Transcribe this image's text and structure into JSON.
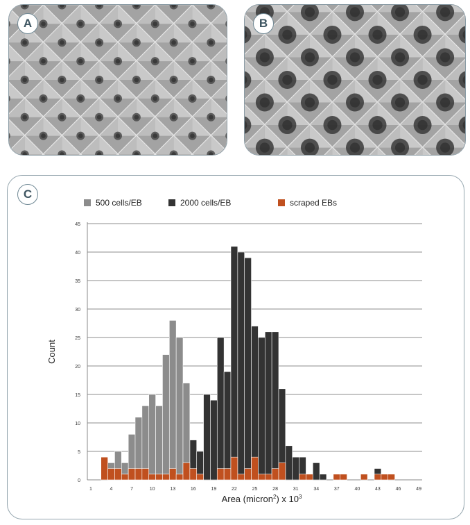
{
  "panels": {
    "a": {
      "label": "A"
    },
    "b": {
      "label": "B"
    },
    "c": {
      "label": "C"
    }
  },
  "colors": {
    "series_500": "#8c8c8c",
    "series_2000": "#333333",
    "series_scraped": "#c0501f",
    "grid": "#b3b3b3",
    "panel_border": "#8a9ba4"
  },
  "chart_data": {
    "type": "bar",
    "xlabel_main": "Area (micron",
    "xlabel_sup1": "2",
    "xlabel_mid": ") x 10",
    "xlabel_sup2": "3",
    "ylabel": "Count",
    "ylim": [
      0,
      45
    ],
    "y_ticks": [
      "0",
      "5",
      "10",
      "15",
      "20",
      "25",
      "30",
      "35",
      "40",
      "45"
    ],
    "x_ticks": [
      "1",
      "4",
      "7",
      "10",
      "13",
      "16",
      "19",
      "22",
      "25",
      "28",
      "31",
      "34",
      "37",
      "40",
      "43",
      "46",
      "49"
    ],
    "grid": true,
    "legend_position": "top",
    "bins": [
      1,
      2,
      3,
      4,
      5,
      6,
      7,
      8,
      9,
      10,
      11,
      12,
      13,
      14,
      15,
      16,
      17,
      18,
      19,
      20,
      21,
      22,
      23,
      24,
      25,
      26,
      27,
      28,
      29,
      30,
      31,
      32,
      33,
      34,
      35,
      36,
      37,
      38,
      39,
      40,
      41,
      42,
      43,
      44,
      45,
      46,
      47,
      48,
      49
    ],
    "series": [
      {
        "name": "500 cells/EB",
        "values": [
          0,
          0,
          0,
          3,
          5,
          3,
          8,
          11,
          13,
          15,
          13,
          22,
          28,
          25,
          17,
          0,
          0,
          0,
          0,
          0,
          0,
          0,
          0,
          0,
          0,
          0,
          0,
          0,
          0,
          0,
          0,
          0,
          0,
          0,
          0,
          0,
          0,
          0,
          0,
          0,
          0,
          0,
          0,
          0,
          0,
          0,
          0,
          0,
          0
        ]
      },
      {
        "name": "2000 cells/EB",
        "values": [
          0,
          0,
          0,
          0,
          0,
          1,
          2,
          3,
          1,
          1,
          2,
          3,
          2,
          3,
          3,
          7,
          5,
          15,
          14,
          25,
          19,
          41,
          40,
          39,
          27,
          25,
          26,
          26,
          16,
          6,
          4,
          4,
          1,
          3,
          1,
          0,
          1,
          1,
          0,
          0,
          0,
          0,
          2,
          1,
          0,
          0,
          0,
          0,
          0
        ]
      },
      {
        "name": "scraped EBs",
        "values": [
          0,
          0,
          4,
          2,
          2,
          1,
          2,
          2,
          2,
          1,
          1,
          1,
          2,
          1,
          3,
          2,
          1,
          0,
          0,
          2,
          2,
          4,
          1,
          2,
          4,
          1,
          1,
          2,
          3,
          0,
          0,
          1,
          1,
          0,
          0,
          0,
          1,
          1,
          0,
          0,
          1,
          0,
          1,
          1,
          1,
          0,
          0,
          0,
          0
        ]
      }
    ]
  }
}
